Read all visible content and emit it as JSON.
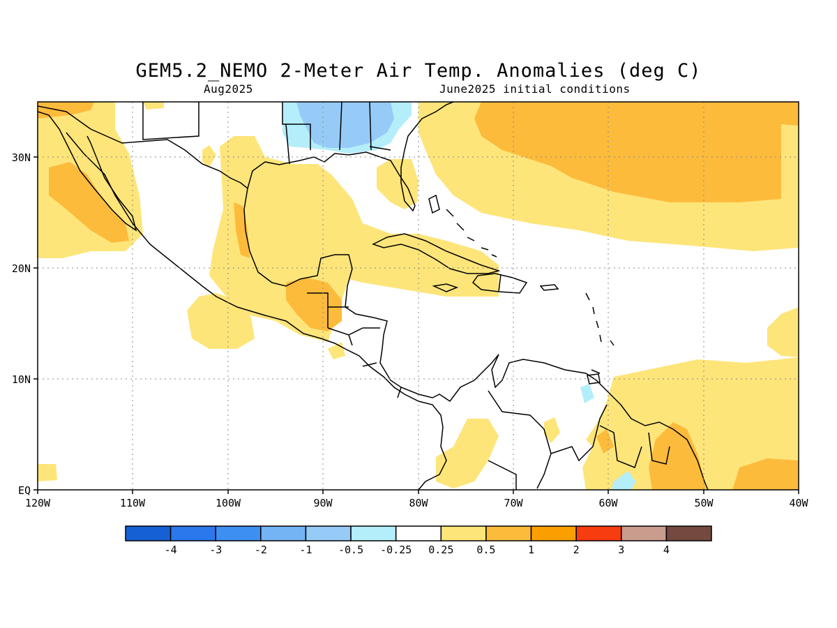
{
  "title": "GEM5.2_NEMO 2-Meter Air Temp. Anomalies (deg C)",
  "subtitle_left": "Aug2025",
  "subtitle_right": "June2025 initial conditions",
  "map": {
    "lon_range": [
      -120,
      -40
    ],
    "lat_range": [
      0,
      35
    ],
    "grid": "dotted",
    "x_ticks": [
      "120W",
      "110W",
      "100W",
      "90W",
      "80W",
      "70W",
      "60W",
      "50W",
      "40W"
    ],
    "y_ticks": [
      "EQ",
      "10N",
      "20N",
      "30N"
    ]
  },
  "colorbar": {
    "labels": [
      "-4",
      "-3",
      "-2",
      "-1",
      "-0.5",
      "-0.25",
      "0.25",
      "0.5",
      "1",
      "2",
      "3",
      "4"
    ],
    "colors": [
      "#1560d4",
      "#2a78ec",
      "#3d8ff2",
      "#74b4f4",
      "#96cbf7",
      "#b4eefa",
      "#ffffff",
      "#fde57a",
      "#fdbb3c",
      "#fb9f00",
      "#f73c0f",
      "#c99c8e",
      "#744a40"
    ]
  },
  "legend_colors": {
    "warm_025_05": "#fde57a",
    "warm_05_1": "#fdbb3c",
    "cool_025_05": "#b4eefa",
    "cool_05_1": "#96cbf7"
  }
}
